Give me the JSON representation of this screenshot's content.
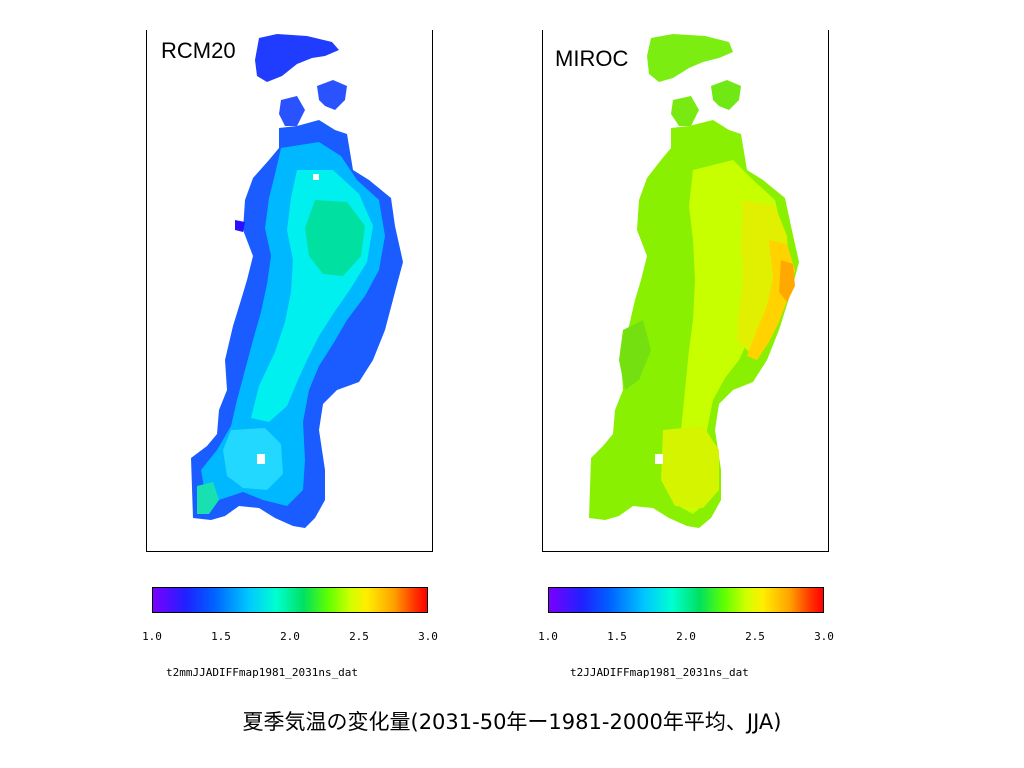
{
  "panels": [
    {
      "label": "RCM20",
      "dataset": "t2mmJJADIFFmap1981_2031ns_dat",
      "dominant_colors": [
        "#0a4cff",
        "#00b4ff",
        "#00f0f0",
        "#00e090",
        "#1a1aff"
      ]
    },
    {
      "label": "MIROC",
      "dataset": "t2JJADIFFmap1981_2031ns_dat",
      "dominant_colors": [
        "#7cf000",
        "#b0ff00",
        "#d8f000",
        "#ffd000",
        "#ff9a00"
      ]
    }
  ],
  "colorbar": {
    "min": 1.0,
    "max": 3.0,
    "ticks": [
      "1.0",
      "1.5",
      "2.0",
      "2.5",
      "3.0"
    ]
  },
  "caption": "夏季気温の変化量(2031-50年ー1981-2000年平均、JJA)"
}
